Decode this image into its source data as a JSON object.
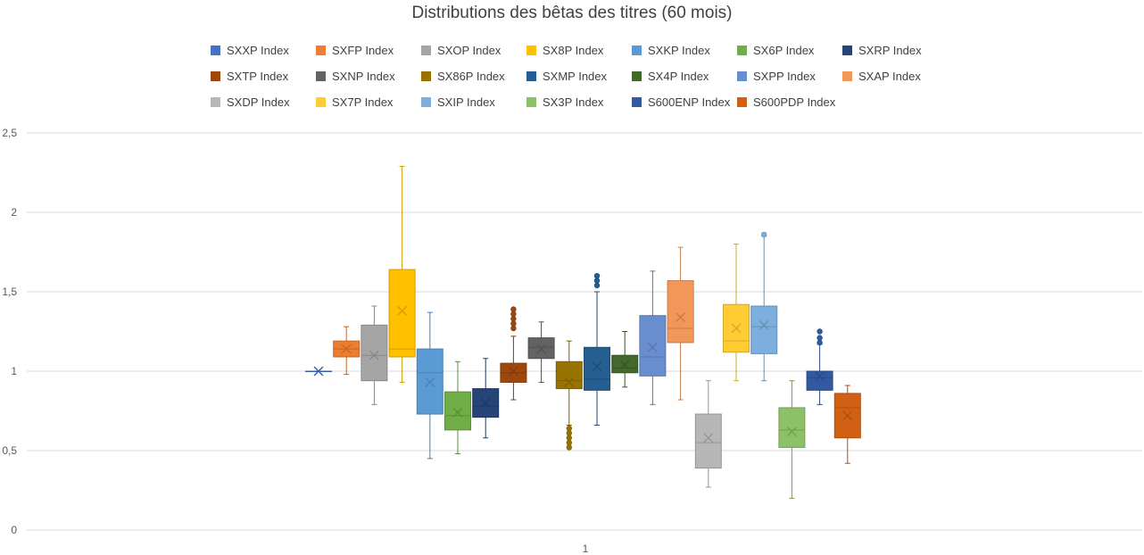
{
  "chart_data": {
    "type": "box",
    "title": "Distributions des bêtas des titres (60 mois)",
    "xlabel": "",
    "ylabel": "",
    "ylim": [
      0,
      2.5
    ],
    "y_ticks": [
      "0",
      "0,5",
      "1",
      "1,5",
      "2",
      "2,5"
    ],
    "categories": [
      "1"
    ],
    "grid": true,
    "legend_position": "top",
    "series": [
      {
        "name": "SXXP Index",
        "color": "#4472C4",
        "min": 1.0,
        "q1": 1.0,
        "median": 1.0,
        "q3": 1.0,
        "max": 1.0,
        "mean": 1.0,
        "outliers": []
      },
      {
        "name": "SXFP Index",
        "color": "#ED7D31",
        "min": 0.98,
        "q1": 1.09,
        "median": 1.14,
        "q3": 1.19,
        "max": 1.28,
        "mean": 1.14,
        "outliers": []
      },
      {
        "name": "SXOP Index",
        "color": "#A5A5A5",
        "min": 0.79,
        "q1": 0.94,
        "median": 1.1,
        "q3": 1.29,
        "max": 1.41,
        "mean": 1.1,
        "outliers": []
      },
      {
        "name": "SX8P Index",
        "color": "#FFC000",
        "min": 0.93,
        "q1": 1.09,
        "median": 1.14,
        "q3": 1.64,
        "max": 2.29,
        "mean": 1.38,
        "outliers": []
      },
      {
        "name": "SXKP Index",
        "color": "#5B9BD5",
        "min": 0.45,
        "q1": 0.73,
        "median": 0.99,
        "q3": 1.14,
        "max": 1.37,
        "mean": 0.93,
        "outliers": []
      },
      {
        "name": "SX6P Index",
        "color": "#70AD47",
        "min": 0.48,
        "q1": 0.63,
        "median": 0.72,
        "q3": 0.87,
        "max": 1.06,
        "mean": 0.74,
        "outliers": []
      },
      {
        "name": "SXRP Index",
        "color": "#264478",
        "min": 0.58,
        "q1": 0.71,
        "median": 0.78,
        "q3": 0.89,
        "max": 1.08,
        "mean": 0.8,
        "outliers": []
      },
      {
        "name": "SXTP Index",
        "color": "#9E480E",
        "min": 0.82,
        "q1": 0.93,
        "median": 0.99,
        "q3": 1.05,
        "max": 1.22,
        "mean": 1.0,
        "outliers": [
          1.27,
          1.3,
          1.33,
          1.36,
          1.39
        ]
      },
      {
        "name": "SXNP Index",
        "color": "#636363",
        "min": 0.93,
        "q1": 1.08,
        "median": 1.15,
        "q3": 1.21,
        "max": 1.31,
        "mean": 1.14,
        "outliers": []
      },
      {
        "name": "SX86P Index",
        "color": "#997300",
        "min": 0.66,
        "q1": 0.89,
        "median": 0.94,
        "q3": 1.06,
        "max": 1.19,
        "mean": 0.93,
        "outliers": [
          0.52,
          0.55,
          0.58,
          0.61,
          0.64
        ]
      },
      {
        "name": "SXMP Index",
        "color": "#255E91",
        "min": 0.66,
        "q1": 0.88,
        "median": 0.95,
        "q3": 1.15,
        "max": 1.5,
        "mean": 1.03,
        "outliers": [
          1.54,
          1.57,
          1.6
        ]
      },
      {
        "name": "SX4P Index",
        "color": "#43682B",
        "min": 0.9,
        "q1": 0.99,
        "median": 1.02,
        "q3": 1.1,
        "max": 1.25,
        "mean": 1.04,
        "outliers": []
      },
      {
        "name": "SXPP Index",
        "color": "#698ED0",
        "min": 0.79,
        "q1": 0.97,
        "median": 1.09,
        "q3": 1.35,
        "max": 1.63,
        "mean": 1.15,
        "outliers": []
      },
      {
        "name": "SXAP Index",
        "color": "#F1975A",
        "min": 0.82,
        "q1": 1.18,
        "median": 1.27,
        "q3": 1.57,
        "max": 1.78,
        "mean": 1.34,
        "outliers": []
      },
      {
        "name": "SXDP Index",
        "color": "#B7B7B7",
        "min": 0.27,
        "q1": 0.39,
        "median": 0.55,
        "q3": 0.73,
        "max": 0.94,
        "mean": 0.58,
        "outliers": []
      },
      {
        "name": "SX7P Index",
        "color": "#FFCD33",
        "min": 0.94,
        "q1": 1.12,
        "median": 1.19,
        "q3": 1.42,
        "max": 1.8,
        "mean": 1.27,
        "outliers": []
      },
      {
        "name": "SXIP Index",
        "color": "#7CAFDD",
        "min": 0.94,
        "q1": 1.11,
        "median": 1.28,
        "q3": 1.41,
        "max": 1.85,
        "mean": 1.29,
        "outliers": [
          1.86
        ]
      },
      {
        "name": "SX3P Index",
        "color": "#8CC168",
        "min": 0.2,
        "q1": 0.52,
        "median": 0.63,
        "q3": 0.77,
        "max": 0.94,
        "mean": 0.62,
        "outliers": []
      },
      {
        "name": "S600ENP Index",
        "color": "#335AA1",
        "min": 0.79,
        "q1": 0.88,
        "median": 0.96,
        "q3": 1.0,
        "max": 1.17,
        "mean": 0.97,
        "outliers": [
          1.18,
          1.21,
          1.25
        ]
      },
      {
        "name": "S600PDP Index",
        "color": "#D26012",
        "min": 0.42,
        "q1": 0.58,
        "median": 0.77,
        "q3": 0.86,
        "max": 0.91,
        "mean": 0.72,
        "outliers": []
      }
    ]
  }
}
